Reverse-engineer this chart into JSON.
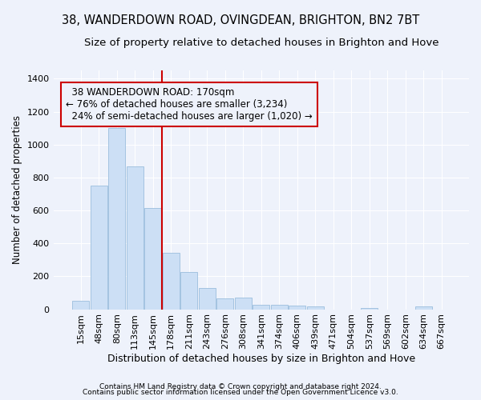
{
  "title": "38, WANDERDOWN ROAD, OVINGDEAN, BRIGHTON, BN2 7BT",
  "subtitle": "Size of property relative to detached houses in Brighton and Hove",
  "xlabel": "Distribution of detached houses by size in Brighton and Hove",
  "ylabel": "Number of detached properties",
  "footer1": "Contains HM Land Registry data © Crown copyright and database right 2024.",
  "footer2": "Contains public sector information licensed under the Open Government Licence v3.0.",
  "categories": [
    "15sqm",
    "48sqm",
    "80sqm",
    "113sqm",
    "145sqm",
    "178sqm",
    "211sqm",
    "243sqm",
    "276sqm",
    "308sqm",
    "341sqm",
    "374sqm",
    "406sqm",
    "439sqm",
    "471sqm",
    "504sqm",
    "537sqm",
    "569sqm",
    "602sqm",
    "634sqm",
    "667sqm"
  ],
  "values": [
    50,
    750,
    1100,
    865,
    617,
    345,
    225,
    130,
    65,
    70,
    25,
    25,
    20,
    15,
    0,
    0,
    10,
    0,
    0,
    15,
    0
  ],
  "bar_color": "#ccdff5",
  "bar_edge_color": "#9bbedd",
  "vline_color": "#cc0000",
  "annotation_text": "  38 WANDERDOWN ROAD: 170sqm\n← 76% of detached houses are smaller (3,234)\n  24% of semi-detached houses are larger (1,020) →",
  "annotation_box_edgecolor": "#cc0000",
  "ylim": [
    0,
    1450
  ],
  "yticks": [
    0,
    200,
    400,
    600,
    800,
    1000,
    1200,
    1400
  ],
  "background_color": "#eef2fb",
  "grid_color": "#ffffff",
  "title_fontsize": 10.5,
  "subtitle_fontsize": 9.5,
  "axis_label_fontsize": 9,
  "ylabel_fontsize": 8.5,
  "tick_fontsize": 8,
  "footer_fontsize": 6.5
}
